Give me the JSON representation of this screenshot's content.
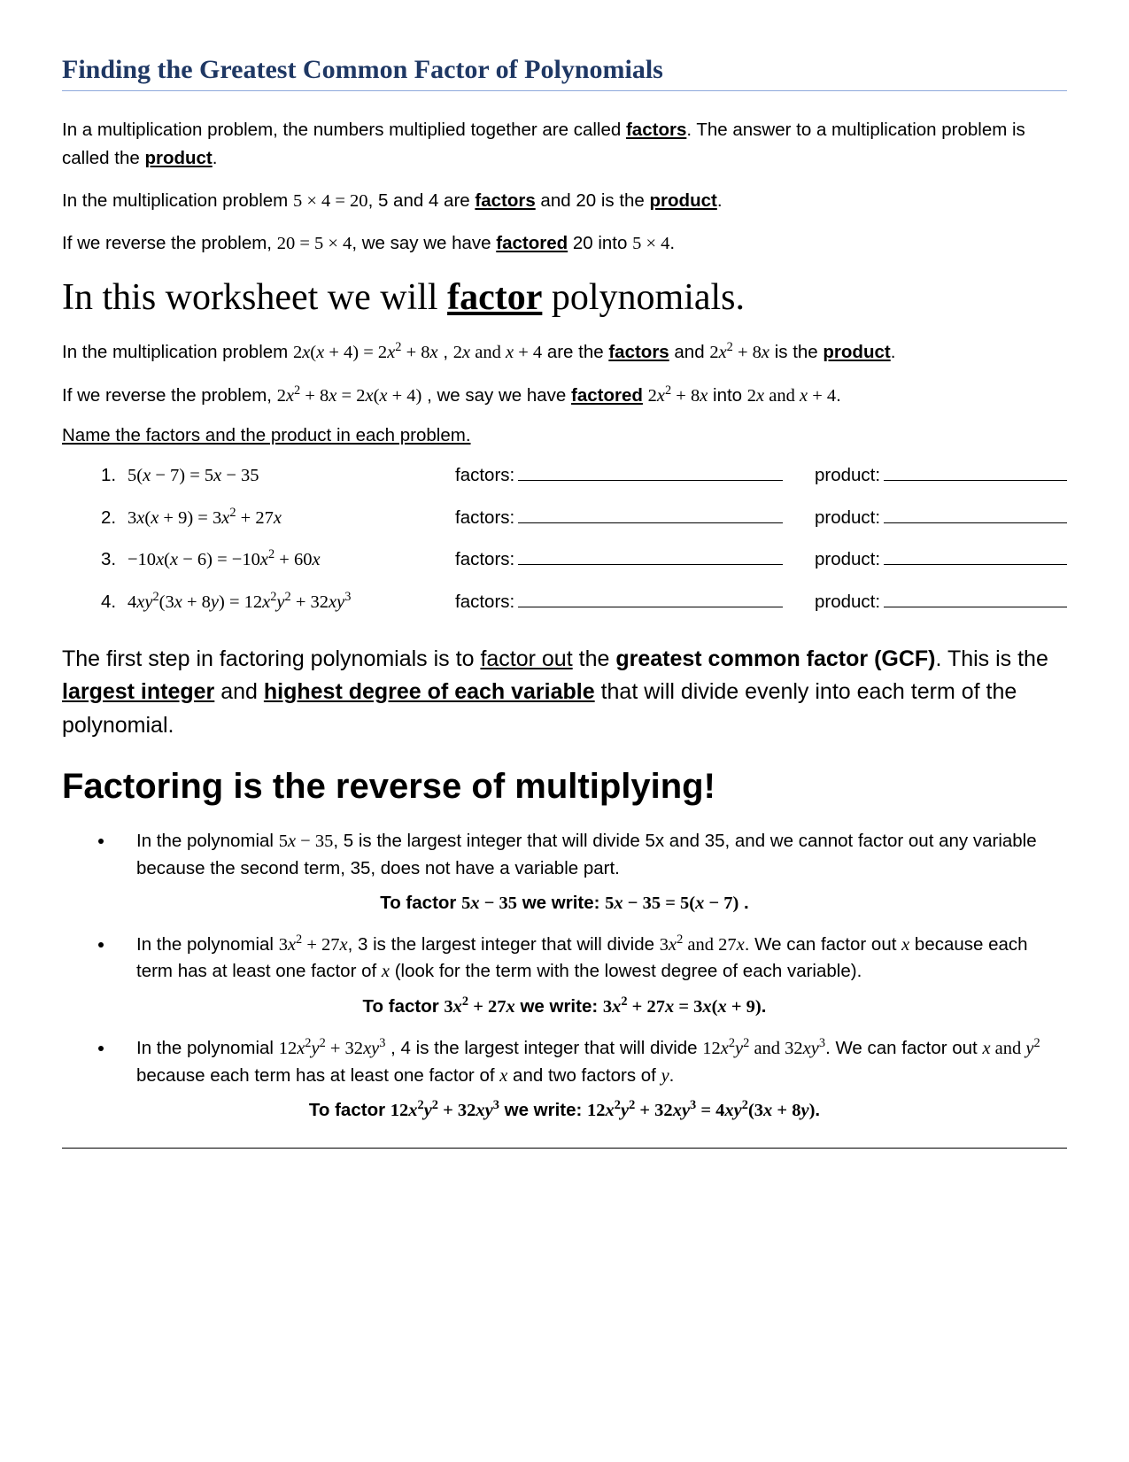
{
  "colors": {
    "title_color": "#1f3864",
    "title_rule": "#8ea9db",
    "text": "#000000",
    "background": "#ffffff"
  },
  "title": "Finding the Greatest Common Factor of Polynomials",
  "p1_a": "In a multiplication problem, the numbers multiplied together are called ",
  "p1_b": "factors",
  "p1_c": ".  The answer to a multiplication problem is called the ",
  "p1_d": "product",
  "p1_e": ".",
  "p2_a": "In the multiplication problem  ",
  "p2_eq": "5 × 4 = 20",
  "p2_b": ", 5 and 4 are ",
  "p2_c": "factors",
  "p2_d": " and 20 is the ",
  "p2_e": "product",
  "p2_f": ".",
  "p3_a": "If we reverse the problem, ",
  "p3_eq": "20 = 5 × 4",
  "p3_b": ", we say we have ",
  "p3_c": "factored",
  "p3_d": " 20 into ",
  "p3_e": "5 × 4",
  "p3_f": ".",
  "big_a": "In this worksheet we will ",
  "big_b": "factor",
  "big_c": " polynomials.",
  "p4_a": "In the multiplication problem  ",
  "p4_b": " , ",
  "p4_c": " are the ",
  "p4_d": "factors",
  "p4_e": " and ",
  "p4_f": " is the ",
  "p4_g": "product",
  "p4_h": ".",
  "p5_a": "If we reverse the problem,  ",
  "p5_b": " , we say we have ",
  "p5_c": "factored",
  "p5_d": " into  ",
  "p5_e": ".",
  "ex_intro": "Name the factors and the product in each problem.",
  "ex": [
    {
      "n": "1.",
      "eq_html": "5(<span class='mi'>x</span> − 7) = 5<span class='mi'>x</span> − 35"
    },
    {
      "n": "2.",
      "eq_html": "3<span class='mi'>x</span>(<span class='mi'>x</span> + 9) = 3<span class='mi'>x</span><sup>2</sup> + 27<span class='mi'>x</span>"
    },
    {
      "n": "3.",
      "eq_html": "−10<span class='mi'>x</span>(<span class='mi'>x</span> − 6) = −10<span class='mi'>x</span><sup>2</sup> + 60<span class='mi'>x</span>"
    },
    {
      "n": "4.",
      "eq_html": "4<span class='mi'>x</span><span class='mi'>y</span><sup>2</sup>(3<span class='mi'>x</span> + 8<span class='mi'>y</span>) = 12<span class='mi'>x</span><sup>2</sup><span class='mi'>y</span><sup>2</sup> + 32<span class='mi'>x</span><span class='mi'>y</span><sup>3</sup>"
    }
  ],
  "label_factors": "factors: ",
  "label_product": "product: ",
  "gcf_a": "The first step in factoring polynomials is to ",
  "gcf_b": "factor out",
  "gcf_c": " the ",
  "gcf_d": "greatest common factor (GCF)",
  "gcf_e": ".  This is the ",
  "gcf_f": "largest integer",
  "gcf_g": " and ",
  "gcf_h": "highest degree of each variable",
  "gcf_i": " that will divide evenly into each term of the polynomial.",
  "rev": "Factoring is the reverse of multiplying!",
  "b1_a": "In the polynomial ",
  "b1_b": ", 5 is the largest integer that will divide 5x and 35, and we cannot factor out any variable because the second term, 35, does not have a variable part.",
  "w1_a": "To factor ",
  "w1_b": " we write:    ",
  "w1_c": " .",
  "b2_a": "In the polynomial  ",
  "b2_b": ", 3 is the largest integer that will divide ",
  "b2_c": ".  We can factor out ",
  "b2_d": " because each term has at least one factor of ",
  "b2_e": " (look for the term with the lowest degree of each variable).",
  "w2_a": "To factor ",
  "w2_b": " we write:   ",
  "w2_c": ".",
  "b3_a": "In the polynomial ",
  "b3_b": " , 4 is the largest integer that will divide  ",
  "b3_c": ".  We can factor out ",
  "b3_d": " because each term has at least one factor of ",
  "b3_e": " and two factors of ",
  "b3_f": ".",
  "w3_a": "To factor ",
  "w3_b": " we write:  ",
  "w3_c": "."
}
